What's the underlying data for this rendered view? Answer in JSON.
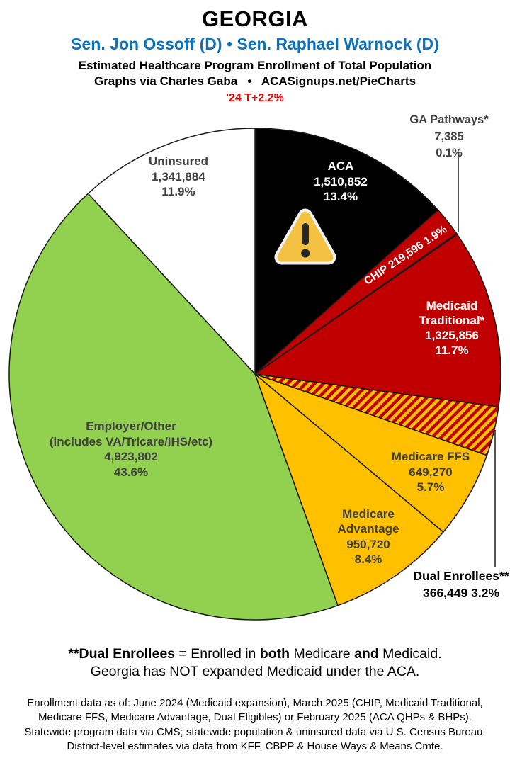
{
  "header": {
    "state": "GEORGIA",
    "senators": "Sen. Jon Ossoff (D) • Sen. Raphael Warnock (D)",
    "subtitle1": "Estimated Healthcare Program Enrollment of Total Population",
    "subtitle2": "Graphs via Charles Gaba   •   ACASignups.net/PieCharts",
    "trend": "'24 T+2.2%"
  },
  "colors": {
    "senators_blue": "#0A72BE",
    "trend_red": "#FF0000",
    "medicaid_red": "#C00000",
    "medicare_gold": "#FFC000",
    "employer_green": "#92D050",
    "aca_black": "#000000",
    "uninsured_white": "#FFFFFF",
    "label_gray": "#404040",
    "slice_border": "#1A1A1A",
    "warning_amber": "#F3C242"
  },
  "chart_data": {
    "type": "pie",
    "title": "Estimated Healthcare Program Enrollment of Total Population",
    "start_angle_deg": 0,
    "direction": "clockwise",
    "legend_position": "labels-on-and-around-slices",
    "slices": [
      {
        "id": "aca",
        "label": "ACA",
        "value": 1510852,
        "value_text": "1,510,852",
        "pct": 13.4,
        "pct_text": "13.4%",
        "color": "#000000",
        "text_color": "#FFFFFF"
      },
      {
        "id": "chip",
        "label": "CHIP",
        "value": 219596,
        "value_text": "219,596",
        "pct": 1.9,
        "pct_text": "1.9%",
        "color": "#C00000",
        "text_color": "#FFFFFF"
      },
      {
        "id": "ga-pathways",
        "label": "GA Pathways*",
        "value": 7385,
        "value_text": "7,385",
        "pct": 0.1,
        "pct_text": "0.1%",
        "color": "#C00000",
        "text_color": "#404040"
      },
      {
        "id": "medicaid-traditional",
        "label": "Medicaid Traditional*",
        "label_lines": [
          "Medicaid",
          "Traditional*"
        ],
        "value": 1325856,
        "value_text": "1,325,856",
        "pct": 11.7,
        "pct_text": "11.7%",
        "color": "#C00000",
        "text_color": "#FFFFFF"
      },
      {
        "id": "dual-enrollees",
        "label": "Dual Enrollees**",
        "value": 366449,
        "value_text": "366,449",
        "pct": 3.2,
        "pct_text": "3.2%",
        "color": "#C00000",
        "pattern": "diagonal-hatch",
        "pattern_colors": [
          "#C00000",
          "#FFC000"
        ],
        "text_color": "#000000"
      },
      {
        "id": "medicare-ffs",
        "label": "Medicare FFS",
        "value": 649270,
        "value_text": "649,270",
        "pct": 5.7,
        "pct_text": "5.7%",
        "color": "#FFC000",
        "text_color": "#404040"
      },
      {
        "id": "medicare-advantage",
        "label": "Medicare Advantage",
        "label_lines": [
          "Medicare",
          "Advantage"
        ],
        "value": 950720,
        "value_text": "950,720",
        "pct": 8.4,
        "pct_text": "8.4%",
        "color": "#FFC000",
        "text_color": "#404040"
      },
      {
        "id": "employer-other",
        "label": "Employer/Other (includes VA/Tricare/IHS/etc)",
        "label_lines": [
          "Employer/Other",
          "(includes VA/Tricare/IHS/etc)"
        ],
        "value": 4923802,
        "value_text": "4,923,802",
        "pct": 43.6,
        "pct_text": "43.6%",
        "color": "#92D050",
        "text_color": "#404040"
      },
      {
        "id": "uninsured",
        "label": "Uninsured",
        "value": 1341884,
        "value_text": "1,341,884",
        "pct": 11.9,
        "pct_text": "11.9%",
        "color": "#FFFFFF",
        "text_color": "#404040"
      }
    ]
  },
  "notes": {
    "dual_line_segments": [
      {
        "text": "**Dual Enrollees",
        "bold": true
      },
      {
        "text": " = Enrolled in ",
        "bold": false
      },
      {
        "text": "both",
        "bold": true
      },
      {
        "text": " Medicare ",
        "bold": false
      },
      {
        "text": "and",
        "bold": true
      },
      {
        "text": " Medicaid.",
        "bold": false
      }
    ],
    "expansion_line": "Georgia has NOT expanded Medicaid under the ACA.",
    "source_lines": [
      "Enrollment data as of: June 2024 (Medicaid expansion), March 2025 (CHIP, Medicaid Traditional,",
      "Medicare FFS, Medicare Advantage, Dual Eligibles) or February 2025 (ACA QHPs & BHPs).",
      "Statewide program data via CMS; statewide population & uninsured data via U.S. Census Bureau.",
      "District-level estimates via data from KFF, CBPP & House Ways & Means Cmte."
    ]
  }
}
